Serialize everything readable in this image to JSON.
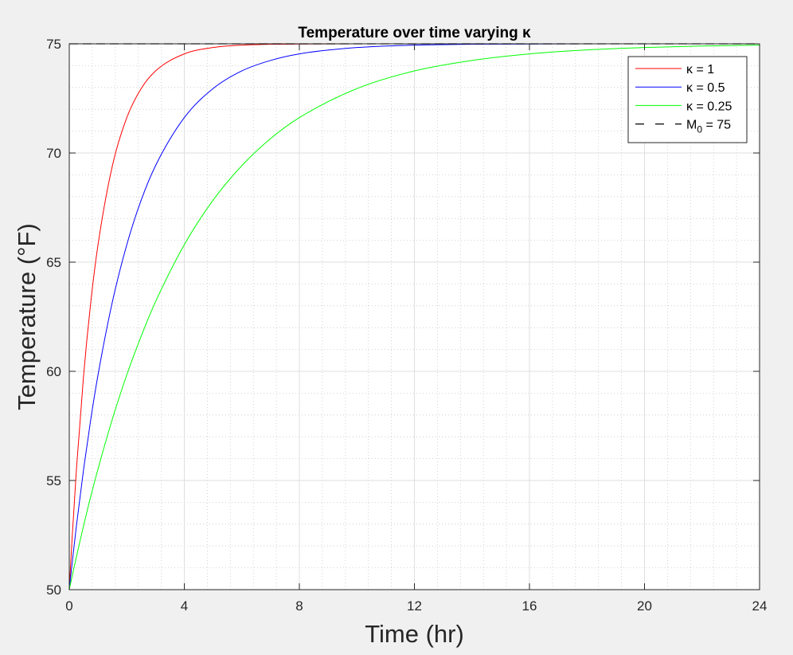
{
  "chart_data": {
    "type": "line",
    "title": "Temperature over time varying κ",
    "xlabel": "Time (hr)",
    "ylabel": "Temperature (°F)",
    "xlim": [
      0,
      24
    ],
    "ylim": [
      50,
      75
    ],
    "xticks": [
      0,
      4,
      8,
      12,
      16,
      20,
      24
    ],
    "yticks": [
      50,
      55,
      60,
      65,
      70,
      75
    ],
    "grid": true,
    "minor_grid": true,
    "legend_position": "top-right",
    "x": [
      0,
      0.1,
      0.25,
      0.5,
      0.75,
      1,
      1.5,
      2,
      2.5,
      3,
      4,
      5,
      6,
      7,
      8,
      10,
      12,
      14,
      16,
      18,
      20,
      22,
      24
    ],
    "series": [
      {
        "name": "κ = 1",
        "color": "#ff0000",
        "style": "solid",
        "values": [
          50,
          52.38,
          55.53,
          59.84,
          63.19,
          65.8,
          69.42,
          71.62,
          72.95,
          73.76,
          74.54,
          74.83,
          74.94,
          74.98,
          74.99,
          75.0,
          75.0,
          75.0,
          75.0,
          75.0,
          75.0,
          75.0,
          75.0
        ]
      },
      {
        "name": "κ = 0.5",
        "color": "#0000ff",
        "style": "solid",
        "values": [
          50,
          51.22,
          52.94,
          55.53,
          57.82,
          59.84,
          63.19,
          65.8,
          67.84,
          69.42,
          71.62,
          72.95,
          73.76,
          74.24,
          74.54,
          74.83,
          74.94,
          74.98,
          74.99,
          75.0,
          75.0,
          75.0,
          75.0
        ]
      },
      {
        "name": "κ = 0.25",
        "color": "#00ff00",
        "style": "solid",
        "values": [
          50,
          50.62,
          51.52,
          52.94,
          54.29,
          55.53,
          57.82,
          59.84,
          61.61,
          63.19,
          65.8,
          67.84,
          69.42,
          70.66,
          71.62,
          72.95,
          73.76,
          74.24,
          74.54,
          74.72,
          74.83,
          74.9,
          74.94
        ]
      },
      {
        "name": "M0 = 75",
        "label_main": "M",
        "label_sub": "0",
        "label_tail": " = 75",
        "color": "#000000",
        "style": "dashed",
        "values": [
          75,
          75,
          75,
          75,
          75,
          75,
          75,
          75,
          75,
          75,
          75,
          75,
          75,
          75,
          75,
          75,
          75,
          75,
          75,
          75,
          75,
          75,
          75
        ]
      }
    ]
  }
}
